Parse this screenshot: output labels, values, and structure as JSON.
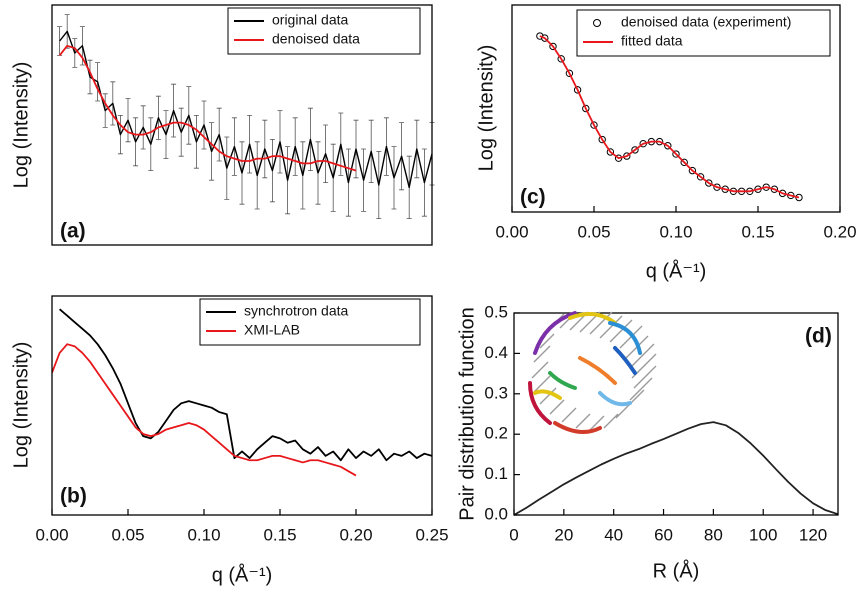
{
  "chart_data": [
    {
      "type": "line",
      "ylabel": "Log (Intensity)",
      "annotation": "(a)",
      "xlim": [
        0,
        0.25
      ],
      "ylim": [
        0,
        10
      ],
      "legend": "upper right",
      "series": [
        {
          "name": "original data",
          "color": "#000000",
          "x": [
            0.005,
            0.01,
            0.015,
            0.02,
            0.025,
            0.03,
            0.035,
            0.04,
            0.045,
            0.05,
            0.055,
            0.06,
            0.065,
            0.07,
            0.075,
            0.08,
            0.085,
            0.09,
            0.095,
            0.1,
            0.105,
            0.11,
            0.115,
            0.12,
            0.125,
            0.13,
            0.135,
            0.14,
            0.145,
            0.15,
            0.155,
            0.16,
            0.165,
            0.17,
            0.175,
            0.18,
            0.185,
            0.19,
            0.195,
            0.2,
            0.205,
            0.21,
            0.215,
            0.22,
            0.225,
            0.23,
            0.235,
            0.24,
            0.245,
            0.25
          ],
          "values": [
            8.5,
            8.9,
            8.0,
            8.3,
            7.0,
            6.8,
            5.6,
            5.9,
            4.6,
            5.2,
            4.3,
            4.9,
            4.2,
            5.3,
            4.6,
            5.6,
            4.7,
            5.4,
            4.3,
            5.0,
            3.9,
            4.6,
            3.2,
            4.1,
            3.0,
            4.2,
            2.9,
            4.0,
            3.1,
            4.3,
            2.7,
            4.1,
            2.9,
            4.4,
            3.0,
            3.8,
            2.8,
            4.2,
            2.6,
            4.0,
            2.7,
            3.9,
            2.5,
            4.1,
            2.8,
            3.7,
            2.4,
            4.0,
            2.6,
            3.8
          ],
          "errors": [
            0.6,
            0.7,
            0.6,
            0.8,
            0.7,
            0.8,
            0.7,
            0.9,
            0.8,
            0.9,
            1.0,
            0.9,
            1.1,
            0.9,
            1.0,
            1.1,
            1.0,
            1.2,
            1.1,
            1.0,
            1.2,
            1.1,
            1.3,
            1.2,
            1.3,
            1.2,
            1.4,
            1.2,
            1.3,
            1.3,
            1.4,
            1.2,
            1.4,
            1.3,
            1.3,
            1.2,
            1.4,
            1.3,
            1.4,
            1.2,
            1.3,
            1.3,
            1.4,
            1.2,
            1.3,
            1.4,
            1.3,
            1.2,
            1.4,
            1.3
          ]
        },
        {
          "name": "denoised data",
          "color": "#e8171b",
          "x": [
            0.005,
            0.01,
            0.015,
            0.02,
            0.025,
            0.03,
            0.035,
            0.04,
            0.045,
            0.05,
            0.055,
            0.06,
            0.065,
            0.07,
            0.075,
            0.08,
            0.085,
            0.09,
            0.095,
            0.1,
            0.105,
            0.11,
            0.115,
            0.12,
            0.125,
            0.13,
            0.135,
            0.14,
            0.145,
            0.15,
            0.155,
            0.16,
            0.165,
            0.17,
            0.175,
            0.18,
            0.185,
            0.19,
            0.195,
            0.2
          ],
          "values": [
            7.9,
            8.3,
            8.2,
            7.8,
            7.2,
            6.5,
            5.9,
            5.4,
            5.0,
            4.7,
            4.6,
            4.6,
            4.7,
            4.9,
            5.0,
            5.1,
            5.1,
            5.0,
            4.8,
            4.5,
            4.2,
            3.9,
            3.7,
            3.6,
            3.5,
            3.5,
            3.6,
            3.6,
            3.7,
            3.7,
            3.6,
            3.5,
            3.4,
            3.4,
            3.5,
            3.5,
            3.4,
            3.3,
            3.2,
            3.1
          ]
        }
      ]
    },
    {
      "type": "line",
      "xlabel": "q (Å⁻¹)",
      "ylabel": "Log (Intensity)",
      "annotation": "(b)",
      "xlim": [
        0,
        0.25
      ],
      "ylim": [
        0,
        10
      ],
      "legend": "upper right",
      "xticks": [
        {
          "value": 0,
          "label": "0.00"
        },
        0.05,
        {
          "value": 0.1,
          "label": "0.10"
        },
        0.15,
        {
          "value": 0.2,
          "label": "0.20"
        },
        0.25
      ],
      "series": [
        {
          "name": "synchrotron data",
          "color": "#000000",
          "x": [
            0.005,
            0.01,
            0.015,
            0.02,
            0.025,
            0.03,
            0.035,
            0.04,
            0.045,
            0.05,
            0.055,
            0.06,
            0.065,
            0.07,
            0.075,
            0.08,
            0.085,
            0.09,
            0.095,
            0.1,
            0.105,
            0.11,
            0.115,
            0.12,
            0.125,
            0.13,
            0.135,
            0.14,
            0.145,
            0.15,
            0.155,
            0.16,
            0.165,
            0.17,
            0.175,
            0.18,
            0.185,
            0.19,
            0.195,
            0.2,
            0.205,
            0.21,
            0.215,
            0.22,
            0.225,
            0.23,
            0.235,
            0.24,
            0.245,
            0.25
          ],
          "values": [
            9.4,
            9.1,
            8.8,
            8.5,
            8.2,
            7.8,
            7.3,
            6.7,
            6.0,
            5.1,
            4.2,
            3.6,
            3.5,
            3.8,
            4.3,
            4.8,
            5.1,
            5.2,
            5.1,
            5.0,
            4.9,
            4.7,
            4.6,
            2.6,
            2.9,
            2.6,
            3.0,
            3.3,
            3.6,
            3.5,
            3.3,
            3.4,
            3.0,
            2.8,
            3.1,
            2.7,
            2.9,
            2.5,
            3.0,
            2.6,
            2.9,
            2.7,
            3.0,
            2.5,
            2.8,
            2.7,
            2.9,
            2.6,
            2.8,
            2.7
          ]
        },
        {
          "name": "XMI-LAB",
          "color": "#e8171b",
          "x": [
            0,
            0.005,
            0.01,
            0.015,
            0.02,
            0.025,
            0.03,
            0.035,
            0.04,
            0.045,
            0.05,
            0.055,
            0.06,
            0.065,
            0.07,
            0.075,
            0.08,
            0.085,
            0.09,
            0.095,
            0.1,
            0.105,
            0.11,
            0.115,
            0.12,
            0.125,
            0.13,
            0.135,
            0.14,
            0.145,
            0.15,
            0.155,
            0.16,
            0.165,
            0.17,
            0.175,
            0.18,
            0.185,
            0.19,
            0.195,
            0.2
          ],
          "values": [
            6.5,
            7.4,
            7.8,
            7.7,
            7.4,
            7.0,
            6.5,
            6.0,
            5.5,
            5.0,
            4.5,
            4.0,
            3.7,
            3.6,
            3.7,
            3.9,
            4.0,
            4.1,
            4.2,
            4.1,
            3.9,
            3.6,
            3.3,
            3.0,
            2.7,
            2.6,
            2.5,
            2.5,
            2.6,
            2.7,
            2.7,
            2.6,
            2.5,
            2.4,
            2.5,
            2.5,
            2.4,
            2.3,
            2.2,
            2.0,
            1.8
          ]
        }
      ]
    },
    {
      "type": "line",
      "xlabel": "q (Å⁻¹)",
      "ylabel": "Log (Intensity)",
      "annotation": "(c)",
      "xlim": [
        0,
        0.2
      ],
      "ylim": [
        0,
        10
      ],
      "legend": "upper right",
      "xticks": [
        {
          "value": 0,
          "label": "0.00"
        },
        0.05,
        {
          "value": 0.1,
          "label": "0.10"
        },
        0.15,
        {
          "value": 0.2,
          "label": "0.20"
        }
      ],
      "x": [
        0.017,
        0.02,
        0.025,
        0.03,
        0.035,
        0.04,
        0.045,
        0.05,
        0.055,
        0.06,
        0.065,
        0.07,
        0.075,
        0.08,
        0.085,
        0.09,
        0.095,
        0.1,
        0.105,
        0.11,
        0.115,
        0.12,
        0.125,
        0.13,
        0.135,
        0.14,
        0.145,
        0.15,
        0.155,
        0.16,
        0.165,
        0.17,
        0.175
      ],
      "series": [
        {
          "name": "denoised data (experiment)",
          "color": "#000000",
          "mode": "markers",
          "values": [
            8.5,
            8.4,
            8.0,
            7.4,
            6.7,
            5.9,
            5.0,
            4.2,
            3.5,
            2.9,
            2.6,
            2.7,
            3.0,
            3.3,
            3.4,
            3.4,
            3.2,
            2.8,
            2.4,
            2.0,
            1.7,
            1.4,
            1.2,
            1.1,
            1.0,
            1.0,
            1.0,
            1.1,
            1.2,
            1.1,
            0.9,
            0.8,
            0.7
          ]
        },
        {
          "name": "fitted data",
          "color": "#e8171b",
          "values": [
            8.5,
            8.4,
            8.0,
            7.4,
            6.7,
            5.9,
            5.0,
            4.2,
            3.5,
            2.9,
            2.6,
            2.7,
            3.0,
            3.3,
            3.4,
            3.4,
            3.2,
            2.8,
            2.4,
            2.0,
            1.7,
            1.4,
            1.2,
            1.1,
            1.0,
            1.0,
            1.0,
            1.1,
            1.2,
            1.1,
            0.9,
            0.8,
            0.7
          ]
        }
      ]
    },
    {
      "type": "line",
      "xlabel": "R (Å)",
      "ylabel": "Pair distribution function",
      "annotation": "(d)",
      "xlim": [
        0,
        130
      ],
      "ylim": [
        0,
        0.5
      ],
      "xticks": [
        0,
        20,
        40,
        60,
        80,
        100,
        120
      ],
      "yticks": [
        {
          "value": 0,
          "label": "0.0"
        },
        0.1,
        0.2,
        0.3,
        0.4,
        0.5
      ],
      "x": [
        0,
        5,
        10,
        15,
        20,
        25,
        30,
        35,
        40,
        45,
        50,
        55,
        60,
        65,
        70,
        75,
        80,
        85,
        90,
        95,
        100,
        105,
        110,
        115,
        120,
        125,
        130
      ],
      "series": [
        {
          "color": "#222222",
          "values": [
            0,
            0.018,
            0.038,
            0.057,
            0.076,
            0.093,
            0.109,
            0.125,
            0.139,
            0.152,
            0.163,
            0.176,
            0.188,
            0.201,
            0.214,
            0.225,
            0.23,
            0.222,
            0.203,
            0.177,
            0.147,
            0.114,
            0.082,
            0.053,
            0.029,
            0.012,
            0.002
          ]
        }
      ]
    }
  ]
}
